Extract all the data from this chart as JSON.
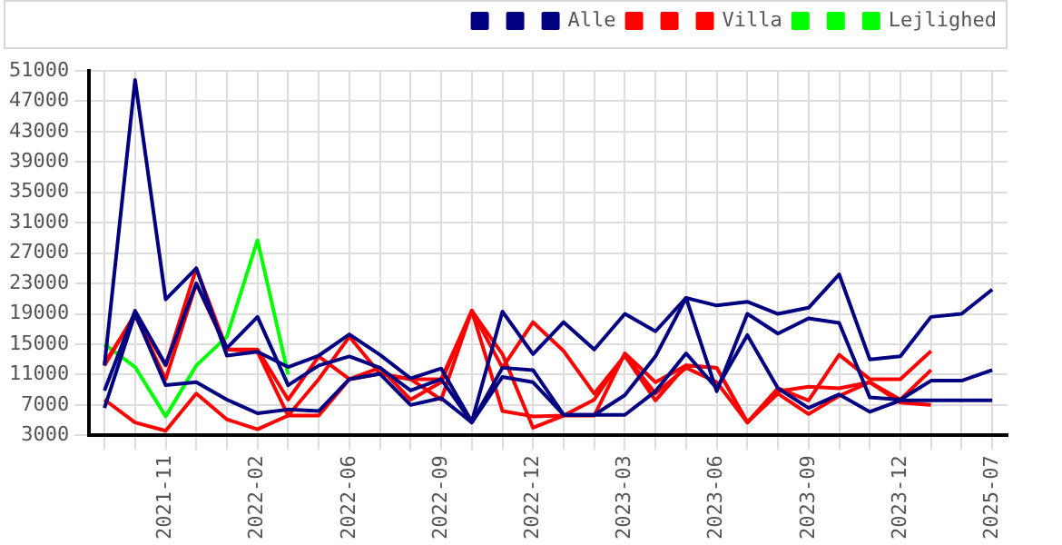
{
  "chart_data": {
    "type": "line",
    "categories": [
      null,
      null,
      "2021-11",
      null,
      null,
      "2022-02",
      null,
      null,
      "2022-06",
      null,
      null,
      "2022-09",
      null,
      null,
      "2022-12",
      null,
      null,
      "2023-03",
      null,
      null,
      "2023-06",
      null,
      null,
      "2023-09",
      null,
      null,
      "2023-12",
      null,
      null,
      "2025-07"
    ],
    "ylim": [
      3000,
      51000
    ],
    "yticks": [
      3000,
      7000,
      11000,
      15000,
      19000,
      23000,
      27000,
      31000,
      35000,
      39000,
      43000,
      47000,
      51000
    ],
    "grid": true,
    "legend": "top right",
    "marker": "none",
    "line_style": "solid",
    "series": [
      {
        "color": "#000080",
        "values": [
          12200,
          49800,
          20900,
          25000,
          13500,
          14000,
          12000,
          13500,
          16300,
          13600,
          10500,
          11800,
          4800,
          19300,
          13700,
          17900,
          14300,
          19000,
          16700,
          21100,
          20100,
          20600,
          19000,
          19800,
          24200,
          13000,
          13400,
          18600,
          19000,
          22200
        ]
      },
      {
        "color": "#000080",
        "values": [
          8900,
          19400,
          12300,
          23000,
          14500,
          18600,
          9600,
          12200,
          13400,
          11900,
          8900,
          10400,
          4700,
          11900,
          11600,
          5700,
          5700,
          8300,
          13400,
          21100,
          8800,
          19000,
          16400,
          18400,
          17800,
          8000,
          7700,
          10200,
          10200,
          11600
        ]
      },
      {
        "name": "Alle",
        "color": "#000080",
        "values": [
          6600,
          19000,
          9600,
          10000,
          7700,
          5900,
          6400,
          6200,
          10400,
          11100,
          7000,
          7900,
          4700,
          10700,
          10000,
          5700,
          5700,
          5700,
          8800,
          13800,
          9200,
          16200,
          9200,
          6600,
          8400,
          6100,
          7600,
          7600,
          7600,
          7600
        ]
      },
      {
        "color": "#ff0000",
        "values": [
          12200,
          19000,
          12200,
          25000,
          14300,
          14300,
          7700,
          13400,
          10400,
          11900,
          7700,
          10000,
          19400,
          11900,
          17900,
          14100,
          8500,
          13500,
          7600,
          12200,
          11900,
          4700,
          9200,
          7600,
          13600,
          10400,
          10400,
          14100,
          null,
          null
        ]
      },
      {
        "color": "#ff0000",
        "values": [
          7700,
          4700,
          3600,
          8500,
          5100,
          3800,
          5600,
          5600,
          10400,
          11100,
          10400,
          10400,
          19400,
          6200,
          5500,
          5600,
          7700,
          13600,
          8500,
          11900,
          10000,
          4700,
          8500,
          5800,
          8200,
          10000,
          7700,
          11600,
          null,
          null
        ]
      },
      {
        "name": "Villa",
        "color": "#ff0000",
        "values": [
          12500,
          18800,
          10400,
          23000,
          14300,
          14000,
          5600,
          10400,
          16000,
          11100,
          10400,
          7700,
          19400,
          13700,
          4000,
          5600,
          5600,
          13800,
          10000,
          12200,
          11900,
          4700,
          8800,
          9400,
          9200,
          10000,
          7300,
          7000,
          null,
          null
        ]
      },
      {
        "color": "#00ff00",
        "values": [
          null,
          null,
          null,
          null,
          null,
          null,
          null,
          null,
          null,
          null,
          null,
          null,
          null,
          null,
          null,
          null,
          null,
          null,
          null,
          null,
          null,
          null,
          null,
          null,
          null,
          null,
          null,
          null,
          null,
          null
        ]
      },
      {
        "color": "#00ff00",
        "values": [
          null,
          null,
          null,
          null,
          null,
          null,
          null,
          null,
          null,
          null,
          null,
          null,
          null,
          null,
          null,
          null,
          null,
          null,
          null,
          null,
          null,
          null,
          null,
          null,
          null,
          null,
          null,
          null,
          null,
          null
        ]
      },
      {
        "name": "Lejlighed",
        "color": "#00ff00",
        "values": [
          15000,
          12000,
          5500,
          12200,
          16000,
          28700,
          11000,
          null,
          null,
          null,
          null,
          null,
          null,
          null,
          null,
          null,
          null,
          null,
          null,
          null,
          null,
          null,
          null,
          null,
          null,
          null,
          null,
          null,
          null,
          null
        ]
      }
    ]
  }
}
